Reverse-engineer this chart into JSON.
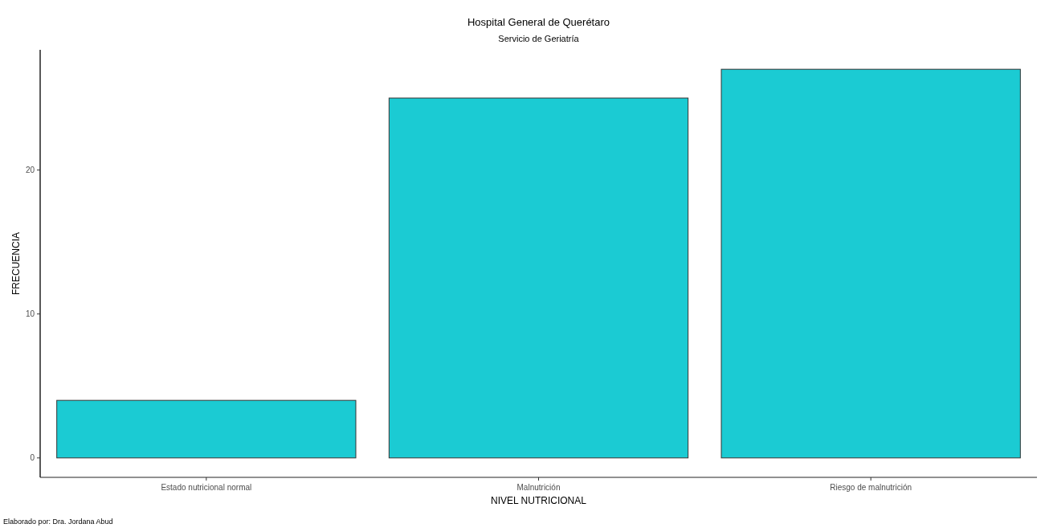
{
  "chart_data": {
    "type": "bar",
    "title": "Hospital General de Querétaro",
    "subtitle": "Servicio de Geriatría",
    "xlabel": "NIVEL NUTRICIONAL",
    "ylabel": "FRECUENCIA",
    "categories": [
      "Estado nutricional normal",
      "Malnutrición",
      "Riesgo de malnutrición"
    ],
    "values": [
      4,
      25,
      27
    ],
    "color": "#1bcbd3",
    "ylim": [
      -1.35,
      28.35
    ],
    "yticks": [
      0,
      10,
      20
    ],
    "grid": false,
    "annotations": [
      "Elaborado por: Dra. Jordana Abud"
    ]
  }
}
